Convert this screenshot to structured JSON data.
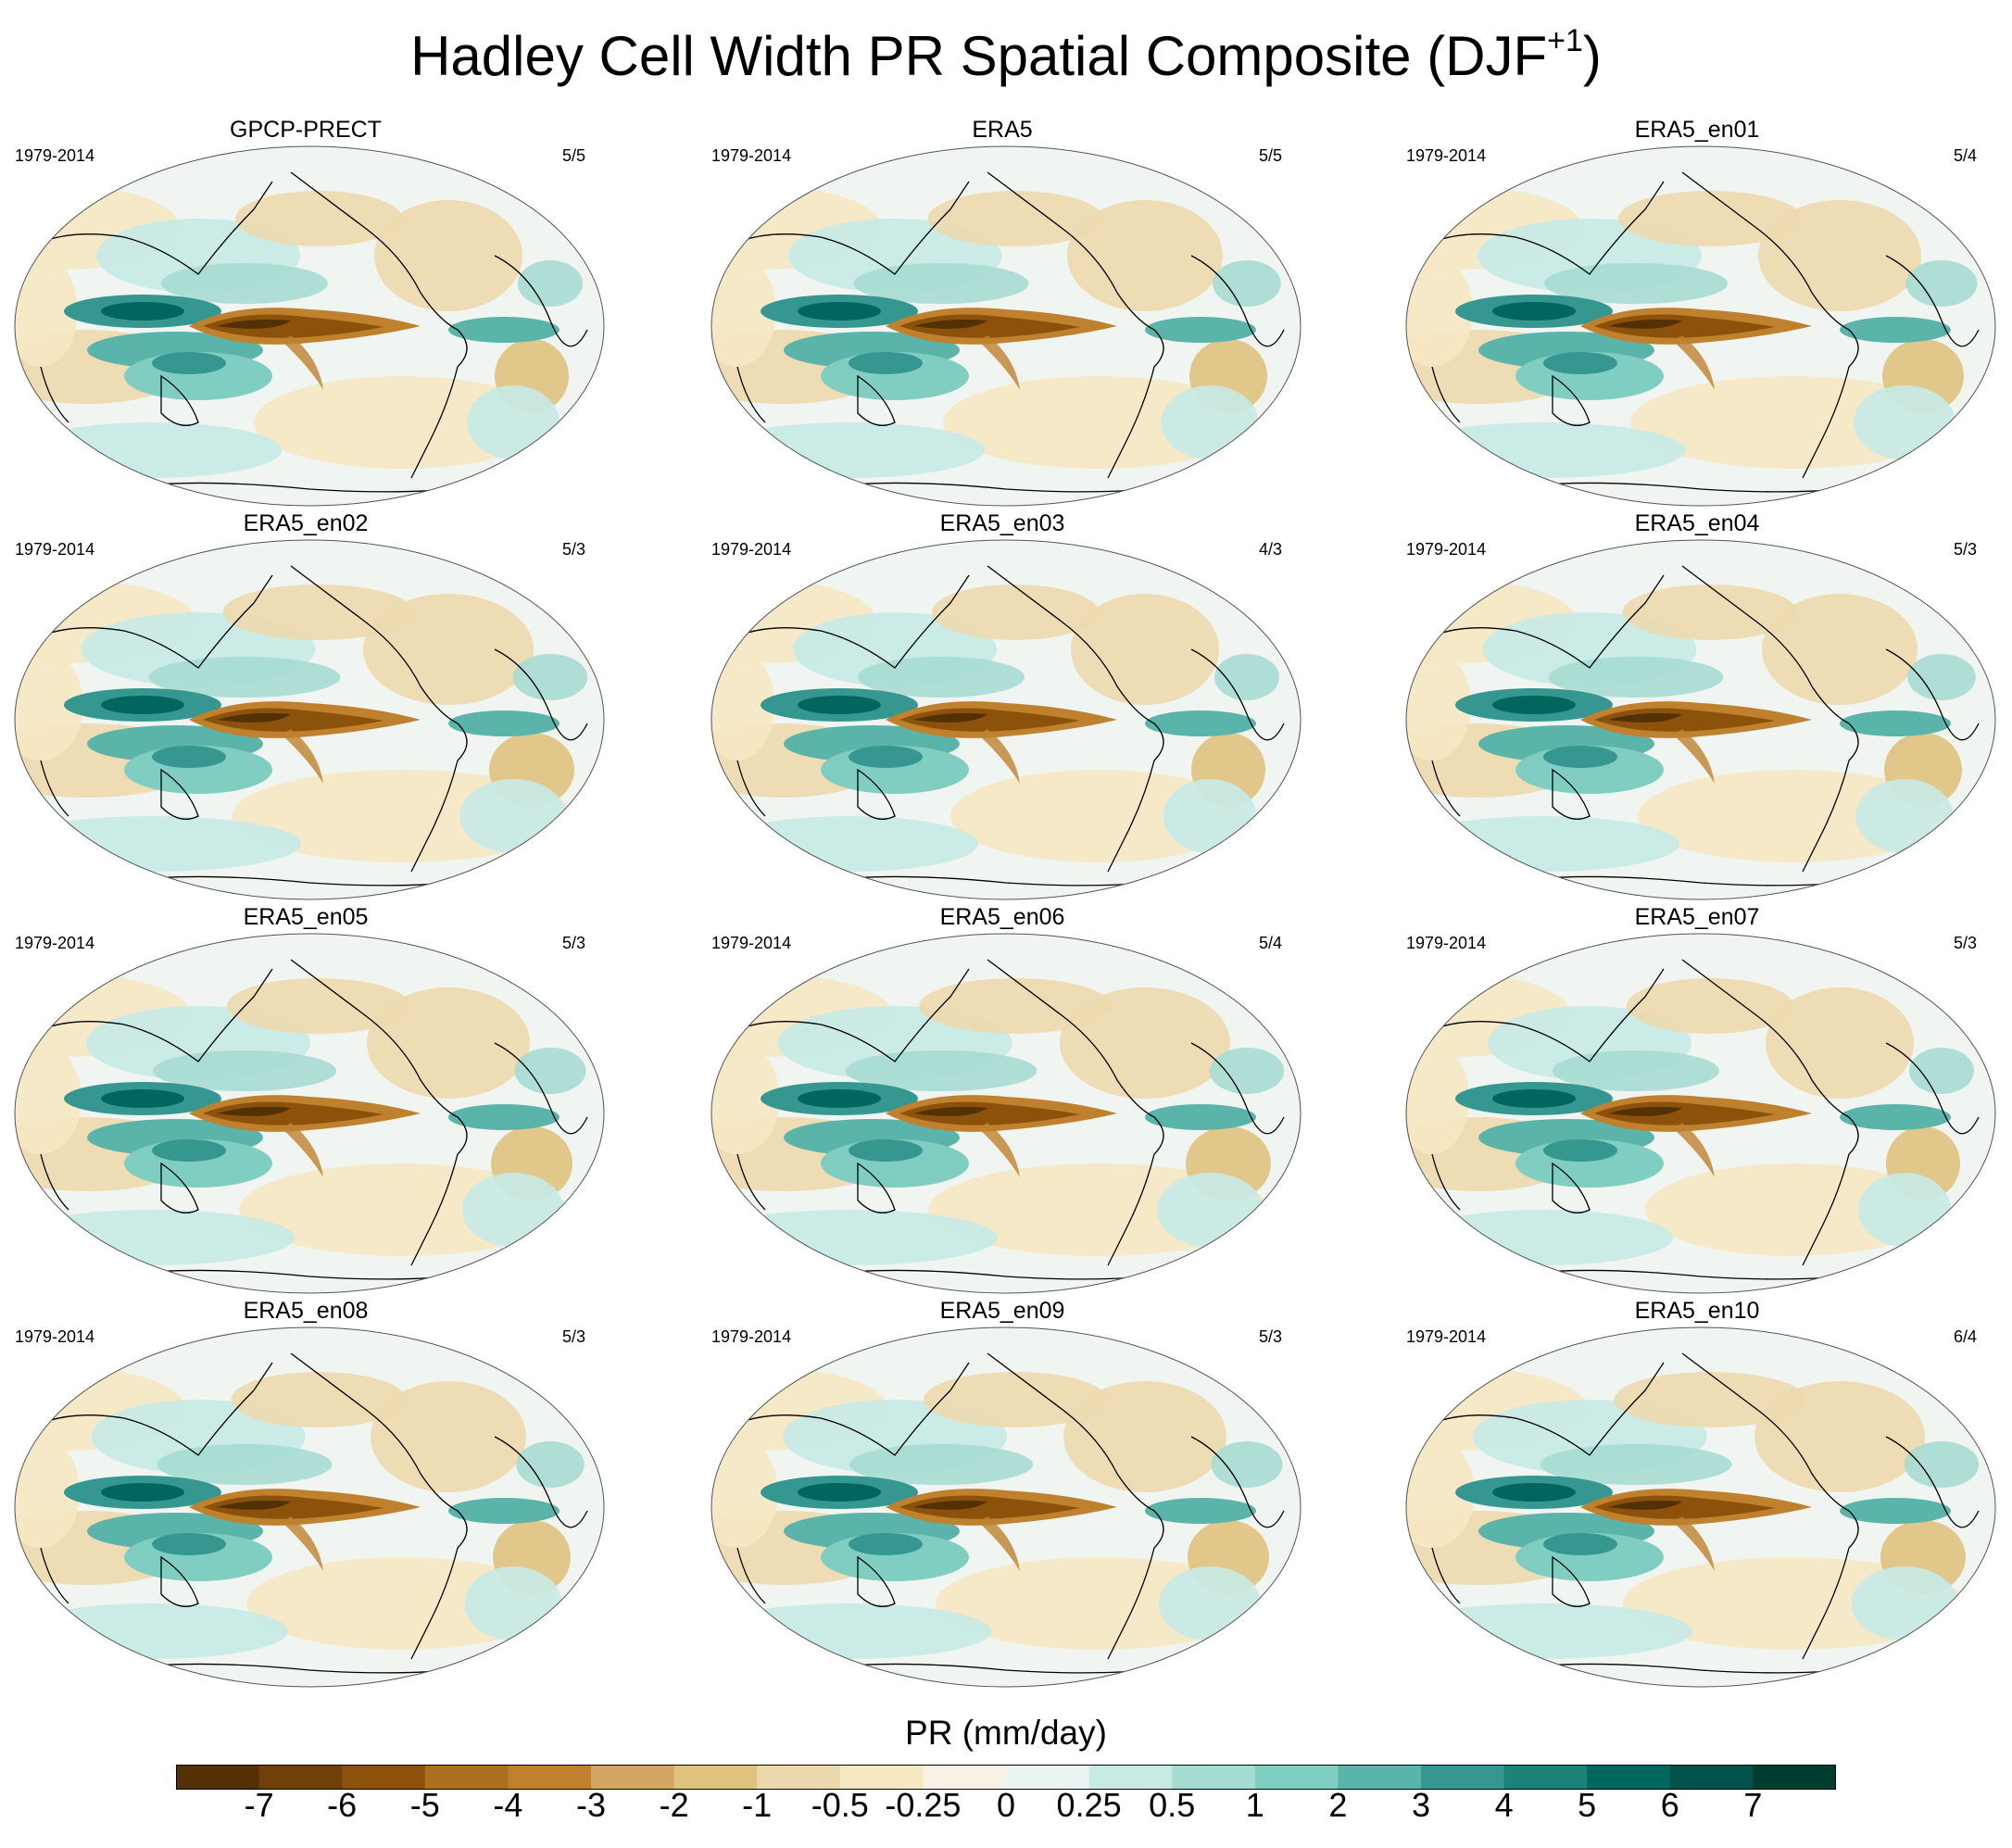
{
  "title_main": "Hadley Cell Width PR Spatial Composite (DJF",
  "title_sup": "+1",
  "title_close": ")",
  "panels": [
    {
      "title": "GPCP-PRECT",
      "period": "1979-2014",
      "ratio": "5/5"
    },
    {
      "title": "ERA5",
      "period": "1979-2014",
      "ratio": "5/5"
    },
    {
      "title": "ERA5_en01",
      "period": "1979-2014",
      "ratio": "5/4"
    },
    {
      "title": "ERA5_en02",
      "period": "1979-2014",
      "ratio": "5/3"
    },
    {
      "title": "ERA5_en03",
      "period": "1979-2014",
      "ratio": "4/3"
    },
    {
      "title": "ERA5_en04",
      "period": "1979-2014",
      "ratio": "5/3"
    },
    {
      "title": "ERA5_en05",
      "period": "1979-2014",
      "ratio": "5/3"
    },
    {
      "title": "ERA5_en06",
      "period": "1979-2014",
      "ratio": "5/4"
    },
    {
      "title": "ERA5_en07",
      "period": "1979-2014",
      "ratio": "5/3"
    },
    {
      "title": "ERA5_en08",
      "period": "1979-2014",
      "ratio": "5/3"
    },
    {
      "title": "ERA5_en09",
      "period": "1979-2014",
      "ratio": "5/3"
    },
    {
      "title": "ERA5_en10",
      "period": "1979-2014",
      "ratio": "6/4"
    }
  ],
  "colorbar": {
    "title": "PR (mm/day)",
    "labels": [
      "-7",
      "-6",
      "-5",
      "-4",
      "-3",
      "-2",
      "-1",
      "-0.5",
      "-0.25",
      "0",
      "0.25",
      "0.5",
      "1",
      "2",
      "3",
      "4",
      "5",
      "6",
      "7"
    ],
    "colors": [
      "#543005",
      "#704009",
      "#8c510a",
      "#a8701f",
      "#bf812d",
      "#d2a562",
      "#dfc27d",
      "#ecd9ad",
      "#f6e8c3",
      "#f8f1e5",
      "#eaf4f2",
      "#c7eae5",
      "#a6dcd1",
      "#80cdc1",
      "#5ab4a9",
      "#35978f",
      "#1e8279",
      "#01665e",
      "#00524a",
      "#003c30"
    ]
  }
}
